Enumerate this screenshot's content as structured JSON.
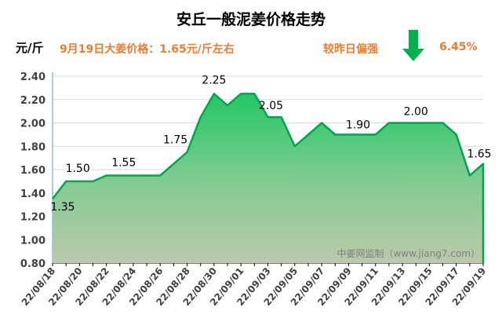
{
  "header": {
    "title": "安丘一般泥姜价格走势",
    "unit": "元/斤",
    "price_note": "9月19日大姜价格：1.65元/斤左右",
    "compare_label": "较昨日偏强",
    "change_percent": "6.45%",
    "trend_icon": "arrow-down-icon",
    "trend_color": "#00b050",
    "accent_color": "#ed7d31"
  },
  "chart_data": {
    "type": "area",
    "title": "安丘一般泥姜价格走势",
    "ylim": [
      0.8,
      2.4
    ],
    "y_ticks": [
      "0.80",
      "1.00",
      "1.20",
      "1.40",
      "1.60",
      "1.80",
      "2.00",
      "2.20",
      "2.40"
    ],
    "grid": true,
    "x": [
      "22/08/18",
      "22/08/19",
      "22/08/20",
      "22/08/21",
      "22/08/22",
      "22/08/23",
      "22/08/24",
      "22/08/25",
      "22/08/26",
      "22/08/27",
      "22/08/28",
      "22/08/29",
      "22/08/30",
      "22/08/31",
      "22/09/01",
      "22/09/02",
      "22/09/03",
      "22/09/04",
      "22/09/05",
      "22/09/06",
      "22/09/07",
      "22/09/08",
      "22/09/09",
      "22/09/10",
      "22/09/11",
      "22/09/12",
      "22/09/13",
      "22/09/14",
      "22/09/15",
      "22/09/16",
      "22/09/17",
      "22/09/18",
      "22/09/19"
    ],
    "x_tick_labels": [
      "22/08/18",
      "22/08/20",
      "22/08/22",
      "22/08/24",
      "22/08/26",
      "22/08/28",
      "22/08/30",
      "22/09/01",
      "22/09/03",
      "22/09/05",
      "22/09/07",
      "22/09/09",
      "22/09/11",
      "22/09/13",
      "22/09/15",
      "22/09/17",
      "22/09/19"
    ],
    "values": [
      1.35,
      1.5,
      1.5,
      1.5,
      1.55,
      1.55,
      1.55,
      1.55,
      1.55,
      1.65,
      1.75,
      2.05,
      2.25,
      2.15,
      2.25,
      2.25,
      2.05,
      2.05,
      1.8,
      1.9,
      2.0,
      1.9,
      1.9,
      1.9,
      1.9,
      2.0,
      2.0,
      2.0,
      2.0,
      2.0,
      1.9,
      1.55,
      1.65
    ],
    "data_labels": [
      {
        "index": 0,
        "text": "1.35"
      },
      {
        "index": 1,
        "text": "1.50"
      },
      {
        "index": 5,
        "text": "1.55"
      },
      {
        "index": 10,
        "text": "1.75"
      },
      {
        "index": 12,
        "text": "2.25"
      },
      {
        "index": 16,
        "text": "2.05"
      },
      {
        "index": 22,
        "text": "1.90"
      },
      {
        "index": 27,
        "text": "2.00"
      },
      {
        "index": 32,
        "text": "1.65"
      }
    ],
    "line_color": "#00b050",
    "watermark": "中姜网监制（www.jiang7.com）"
  }
}
